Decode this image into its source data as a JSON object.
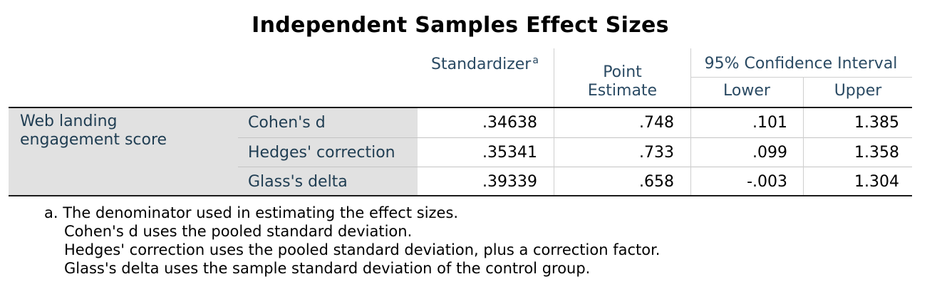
{
  "title": "Independent Samples Effect Sizes",
  "headers": {
    "standardizer": "Standardizer",
    "standardizer_note": "a",
    "point_estimate_line1": "Point",
    "point_estimate_line2": "Estimate",
    "ci": "95% Confidence Interval",
    "lower": "Lower",
    "upper": "Upper"
  },
  "variable": {
    "line1": "Web landing",
    "line2": "engagement score"
  },
  "rows": [
    {
      "label": "Cohen's d",
      "standardizer": ".34638",
      "point": ".748",
      "lower": ".101",
      "upper": "1.385"
    },
    {
      "label": "Hedges' correction",
      "standardizer": ".35341",
      "point": ".733",
      "lower": ".099",
      "upper": "1.358"
    },
    {
      "label": "Glass's delta",
      "standardizer": ".39339",
      "point": ".658",
      "lower": "-.003",
      "upper": "1.304"
    }
  ],
  "footnote": {
    "line1": "a. The denominator used in estimating the effect sizes.",
    "line2": "Cohen's d uses the pooled standard deviation.",
    "line3": "Hedges' correction uses the pooled standard deviation, plus a correction factor.",
    "line4": "Glass's delta uses the sample standard deviation of the control group."
  }
}
